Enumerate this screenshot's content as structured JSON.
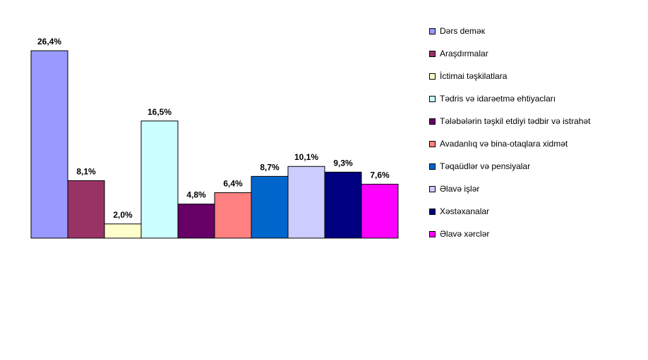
{
  "chart_data": {
    "type": "bar",
    "categories": [
      "Dərs deməк",
      "Araşdırmalar",
      "İctimai təşkilatlara",
      "Tədris və idarəetmə ehtiyacları",
      "Tələbələrin təşkil etdiyi tədbir və istrahət",
      "Avadanlıq və bina-otaqlara xidmət",
      "Təqaüdlər və pensiyalar",
      "Əlavə işlər",
      "Xəstəxanalar",
      "Əlavə xərclər"
    ],
    "values": [
      26.4,
      8.1,
      2.0,
      16.5,
      4.8,
      6.4,
      8.7,
      10.1,
      9.3,
      7.6
    ],
    "data_labels": [
      "26,4%",
      "8,1%",
      "2,0%",
      "16,5%",
      "4,8%",
      "6,4%",
      "8,7%",
      "10,1%",
      "9,3%",
      "7,6%"
    ],
    "colors": [
      "#9999ff",
      "#993366",
      "#ffffcc",
      "#ccffff",
      "#660066",
      "#ff8080",
      "#0066cc",
      "#ccccff",
      "#000080",
      "#ff00ff"
    ],
    "unit": "%",
    "ylim": [
      0,
      26.4
    ],
    "grid": false,
    "legend_position": "right"
  }
}
